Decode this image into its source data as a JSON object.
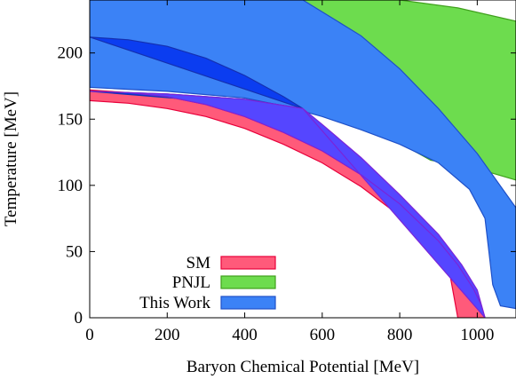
{
  "chart_data": {
    "type": "area",
    "title": "",
    "xlabel": "Baryon Chemical Potential  [MeV]",
    "ylabel": "Temperature  [MeV]",
    "xlim": [
      0,
      1100
    ],
    "ylim": [
      0,
      240
    ],
    "xticks": [
      "0",
      "200",
      "400",
      "600",
      "800",
      "1000"
    ],
    "xtick_values": [
      0,
      200,
      400,
      600,
      800,
      1000
    ],
    "yticks": [
      "0",
      "50",
      "100",
      "150",
      "200"
    ],
    "ytick_values": [
      0,
      50,
      100,
      150,
      200
    ],
    "grid": false,
    "legend_position": "bottom-left",
    "series": [
      {
        "name": "SM",
        "color": "#ff5a7a",
        "stroke": "#e8003a",
        "upper": [
          [
            0,
            172
          ],
          [
            100,
            170
          ],
          [
            200,
            167
          ],
          [
            300,
            161
          ],
          [
            400,
            152
          ],
          [
            500,
            140
          ],
          [
            600,
            126
          ],
          [
            700,
            108
          ],
          [
            800,
            86
          ],
          [
            900,
            58
          ],
          [
            950,
            40
          ],
          [
            990,
            22
          ],
          [
            1010,
            10
          ],
          [
            1020,
            0
          ]
        ],
        "lower": [
          [
            0,
            164
          ],
          [
            100,
            162
          ],
          [
            200,
            158
          ],
          [
            300,
            152
          ],
          [
            400,
            143
          ],
          [
            500,
            131
          ],
          [
            600,
            117
          ],
          [
            700,
            99
          ],
          [
            800,
            77
          ],
          [
            850,
            64
          ],
          [
            900,
            47
          ],
          [
            930,
            32
          ],
          [
            950,
            0
          ]
        ]
      },
      {
        "name": "PNJL",
        "color": "#6ddc4e",
        "stroke": "#3fa01c",
        "upper": [
          [
            400,
            240
          ],
          [
            600,
            240
          ],
          [
            800,
            240
          ],
          [
            950,
            234
          ],
          [
            1100,
            224
          ]
        ],
        "lower": [
          [
            400,
            240
          ],
          [
            500,
            213
          ],
          [
            600,
            185
          ],
          [
            700,
            158
          ],
          [
            800,
            132
          ],
          [
            880,
            119
          ],
          [
            960,
            115
          ],
          [
            1030,
            110
          ],
          [
            1100,
            104
          ]
        ]
      },
      {
        "name": "This Work",
        "color": "#3b82f6",
        "stroke": "#1e50c8",
        "upper": [
          [
            0,
            240
          ],
          [
            300,
            240
          ],
          [
            550,
            240
          ],
          [
            700,
            213
          ],
          [
            800,
            188
          ],
          [
            900,
            158
          ],
          [
            1000,
            124
          ],
          [
            1100,
            83
          ]
        ],
        "lower": [
          [
            0,
            174
          ],
          [
            200,
            171
          ],
          [
            400,
            166
          ],
          [
            500,
            160
          ],
          [
            600,
            152
          ],
          [
            700,
            142
          ],
          [
            800,
            131
          ],
          [
            900,
            117
          ],
          [
            980,
            97
          ],
          [
            1020,
            75
          ],
          [
            1030,
            50
          ],
          [
            1040,
            25
          ],
          [
            1060,
            9
          ],
          [
            1100,
            7
          ]
        ]
      },
      {
        "name": "",
        "color": "#0b3df0",
        "stroke": "#1430b0",
        "upper": [
          [
            0,
            212
          ],
          [
            100,
            210
          ],
          [
            200,
            205
          ],
          [
            300,
            196
          ],
          [
            400,
            183
          ],
          [
            500,
            167
          ],
          [
            550,
            158
          ]
        ],
        "lower": [
          [
            550,
            158
          ],
          [
            400,
            165
          ],
          [
            300,
            167
          ],
          [
            200,
            169
          ],
          [
            100,
            170
          ],
          [
            0,
            171
          ]
        ]
      },
      {
        "name": "",
        "color": "#5546ff",
        "stroke": "#7a24d8",
        "upper": [
          [
            550,
            158
          ],
          [
            600,
            146
          ],
          [
            700,
            121
          ],
          [
            800,
            93
          ],
          [
            900,
            63
          ],
          [
            960,
            40
          ],
          [
            1000,
            21
          ],
          [
            1020,
            0
          ]
        ],
        "lower": [
          [
            1020,
            0
          ],
          [
            1010,
            10
          ],
          [
            990,
            22
          ],
          [
            950,
            40
          ],
          [
            900,
            58
          ],
          [
            800,
            86
          ],
          [
            700,
            108
          ],
          [
            600,
            126
          ],
          [
            500,
            140
          ],
          [
            400,
            152
          ],
          [
            300,
            161
          ],
          [
            200,
            167
          ],
          [
            100,
            170
          ],
          [
            0,
            171
          ],
          [
            100,
            170
          ],
          [
            200,
            169
          ],
          [
            300,
            167
          ],
          [
            400,
            165
          ],
          [
            550,
            158
          ]
        ]
      }
    ]
  }
}
